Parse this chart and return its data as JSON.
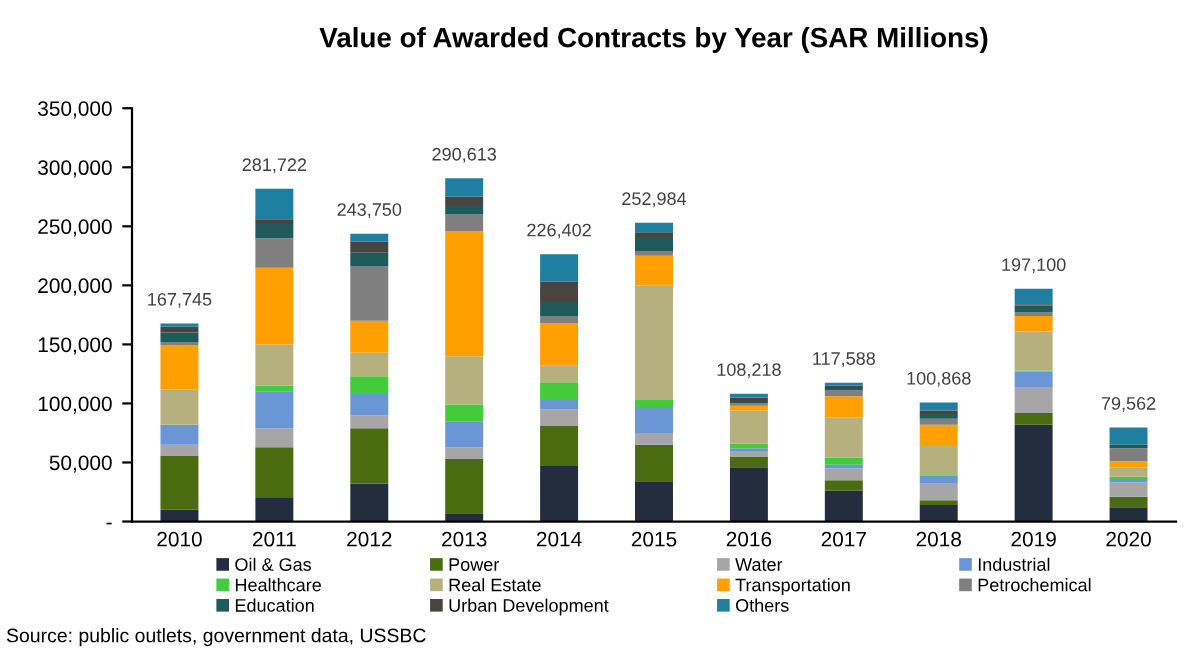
{
  "chart_data": {
    "type": "bar",
    "stacked": true,
    "title": "Value of Awarded Contracts by Year (SAR Millions)",
    "categories": [
      "2010",
      "2011",
      "2012",
      "2013",
      "2014",
      "2015",
      "2016",
      "2017",
      "2018",
      "2019",
      "2020"
    ],
    "series": [
      {
        "name": "Oil & Gas",
        "color": "#242d3d",
        "values": [
          10000,
          20000,
          32000,
          7000,
          47000,
          34000,
          46000,
          26000,
          14000,
          82000,
          12000
        ]
      },
      {
        "name": "Power",
        "color": "#4a6b0f",
        "values": [
          46000,
          43000,
          47000,
          46000,
          34000,
          31000,
          9000,
          9000,
          4000,
          10000,
          9000
        ]
      },
      {
        "name": "Water",
        "color": "#a6a6a6",
        "values": [
          9000,
          16000,
          11000,
          10000,
          14000,
          10000,
          4000,
          10000,
          14000,
          22000,
          12000
        ]
      },
      {
        "name": "Industrial",
        "color": "#6a96d6",
        "values": [
          16000,
          31000,
          18000,
          22000,
          8000,
          22000,
          3000,
          3000,
          7000,
          13000,
          3000
        ]
      },
      {
        "name": "Healthcare",
        "color": "#45c93d",
        "values": [
          1000,
          5000,
          15000,
          14000,
          15000,
          6000,
          4000,
          6000,
          1000,
          1000,
          2000
        ]
      },
      {
        "name": "Real Estate",
        "color": "#b5b07e",
        "values": [
          30000,
          35000,
          20000,
          41000,
          14000,
          97000,
          28000,
          34000,
          24000,
          33000,
          8000
        ]
      },
      {
        "name": "Transportation",
        "color": "#ffa000",
        "values": [
          37000,
          65000,
          27000,
          106000,
          36000,
          25000,
          4000,
          18000,
          18000,
          13000,
          5000
        ]
      },
      {
        "name": "Petrochemical",
        "color": "#7f7f7f",
        "values": [
          3000,
          25000,
          46000,
          14000,
          6000,
          4000,
          2000,
          5000,
          5000,
          3000,
          11000
        ]
      },
      {
        "name": "Education",
        "color": "#1e5a5a",
        "values": [
          8000,
          12000,
          12000,
          8000,
          12000,
          12000,
          2000,
          2000,
          4000,
          6000,
          2000
        ]
      },
      {
        "name": "Urban Development",
        "color": "#4a4440",
        "values": [
          5000,
          4000,
          9000,
          7000,
          17000,
          4000,
          3000,
          2000,
          3000,
          1000,
          1000
        ]
      },
      {
        "name": "Others",
        "color": "#1e7fa0",
        "values": [
          2745,
          25722,
          6750,
          15613,
          23402,
          7984,
          3218,
          2588,
          6868,
          13100,
          14562
        ]
      }
    ],
    "totals": [
      "167,745",
      "281,722",
      "243,750",
      "290,613",
      "226,402",
      "252,984",
      "108,218",
      "117,588",
      "100,868",
      "197,100",
      "79,562"
    ],
    "ylim": [
      0,
      350000
    ],
    "yticks": [
      {
        "value": 0,
        "label": "-"
      },
      {
        "value": 50000,
        "label": "50,000"
      },
      {
        "value": 100000,
        "label": "100,000"
      },
      {
        "value": 150000,
        "label": "150,000"
      },
      {
        "value": 200000,
        "label": "200,000"
      },
      {
        "value": 250000,
        "label": "250,000"
      },
      {
        "value": 300000,
        "label": "300,000"
      },
      {
        "value": 350000,
        "label": "350,000"
      }
    ],
    "grid": false,
    "legend": "bottom",
    "annotations": [
      "Source: public outlets, government data, USSBC"
    ]
  }
}
